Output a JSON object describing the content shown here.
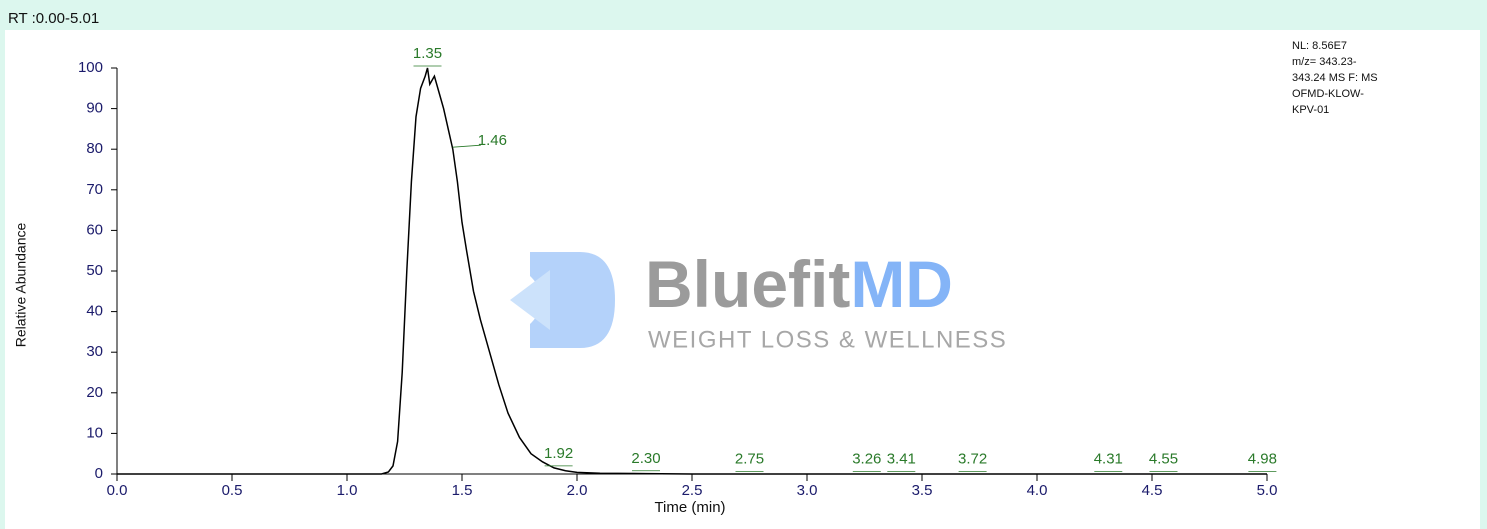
{
  "chart_data": {
    "type": "line",
    "header": "RT :0.00-5.01",
    "ylabel": "Relative Abundance",
    "xlabel": "Time (min)",
    "info": [
      "NL: 8.56E7",
      "m/z= 343.23-",
      "343.24 MS  F: MS",
      "OFMD-KLOW-",
      "KPV-01"
    ],
    "watermark": {
      "brand": "Bluefit",
      "brand_accent": "MD",
      "tagline": "WEIGHT LOSS & WELLNESS"
    },
    "color": "#000000",
    "x": [
      0,
      1.15,
      1.18,
      1.2,
      1.22,
      1.24,
      1.26,
      1.28,
      1.3,
      1.32,
      1.34,
      1.35,
      1.36,
      1.38,
      1.4,
      1.42,
      1.44,
      1.46,
      1.48,
      1.5,
      1.52,
      1.55,
      1.58,
      1.62,
      1.66,
      1.7,
      1.75,
      1.8,
      1.85,
      1.9,
      1.95,
      2.0,
      2.1,
      2.3,
      2.5,
      5.0
    ],
    "values": [
      0,
      0,
      0.5,
      2,
      8,
      25,
      50,
      72,
      88,
      95,
      98,
      100,
      96,
      98,
      94,
      90,
      85,
      80,
      72,
      62,
      55,
      45,
      38,
      30,
      22,
      15,
      9,
      5,
      3,
      1.5,
      0.8,
      0.4,
      0.2,
      0.1,
      0,
      0
    ],
    "peaks": [
      {
        "label": "1.35",
        "x": 1.35,
        "y": 100
      },
      {
        "label": "1.46",
        "x": 1.46,
        "y": 80
      },
      {
        "label": "1.92",
        "x": 1.92,
        "y": 1.5
      },
      {
        "label": "2.30",
        "x": 2.3,
        "y": 0.3
      },
      {
        "label": "2.75",
        "x": 2.75,
        "y": 0.1
      },
      {
        "label": "3.26",
        "x": 3.26,
        "y": 0.1
      },
      {
        "label": "3.41",
        "x": 3.41,
        "y": 0.1
      },
      {
        "label": "3.72",
        "x": 3.72,
        "y": 0.1
      },
      {
        "label": "4.31",
        "x": 4.31,
        "y": 0.1
      },
      {
        "label": "4.55",
        "x": 4.55,
        "y": 0.1
      },
      {
        "label": "4.98",
        "x": 4.98,
        "y": 0.1
      }
    ],
    "xlim": [
      0,
      5
    ],
    "ylim": [
      0,
      100
    ],
    "xticks": [
      {
        "value": 0,
        "label": "0.0"
      },
      {
        "value": 0.5,
        "label": "0.5"
      },
      {
        "value": 1,
        "label": "1.0"
      },
      {
        "value": 1.5,
        "label": "1.5"
      },
      {
        "value": 2,
        "label": "2.0"
      },
      {
        "value": 2.5,
        "label": "2.5"
      },
      {
        "value": 3,
        "label": "3.0"
      },
      {
        "value": 3.5,
        "label": "3.5"
      },
      {
        "value": 4,
        "label": "4.0"
      },
      {
        "value": 4.5,
        "label": "4.5"
      },
      {
        "value": 5,
        "label": "5.0"
      }
    ],
    "yticks": [
      0,
      10,
      20,
      30,
      40,
      50,
      60,
      70,
      80,
      90,
      100
    ]
  }
}
